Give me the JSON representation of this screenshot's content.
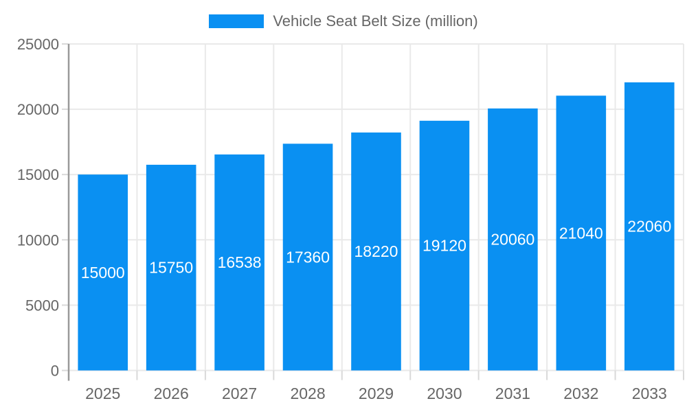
{
  "legend": {
    "label": "Vehicle Seat Belt Size (million)"
  },
  "chart_data": {
    "type": "bar",
    "title": "",
    "xlabel": "",
    "ylabel": "",
    "categories": [
      "2025",
      "2026",
      "2027",
      "2028",
      "2029",
      "2030",
      "2031",
      "2032",
      "2033"
    ],
    "series": [
      {
        "name": "Vehicle Seat Belt Size (million)",
        "values": [
          15000,
          15750,
          16538,
          17360,
          18220,
          19120,
          20060,
          21040,
          22060
        ]
      }
    ],
    "bar_value_labels": [
      "15000",
      "15750",
      "16538",
      "17360",
      "18220",
      "19120",
      "20060",
      "21040",
      "22060"
    ],
    "ylim": [
      0,
      25000
    ],
    "yticks": [
      0,
      5000,
      10000,
      15000,
      20000,
      25000
    ],
    "grid": true,
    "legend_position": "top"
  },
  "colors": {
    "bar": "#0a90f2",
    "bar_label": "#ffffff",
    "axis_line": "#999999",
    "grid_line": "#e9e9e9",
    "tick_mark": "#d9d9d9",
    "tick_label": "#666666",
    "legend_text": "#666666",
    "background": "#ffffff"
  }
}
